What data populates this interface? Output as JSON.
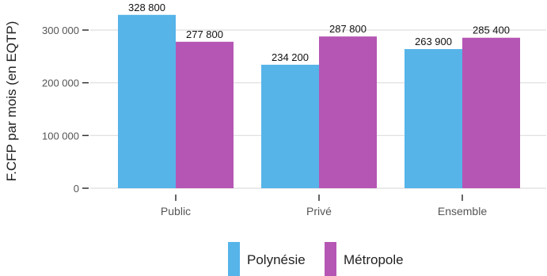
{
  "chart_data": {
    "type": "bar",
    "title": "",
    "xlabel": "",
    "ylabel": "F.CFP par mois (en EQTP)",
    "categories": [
      "Public",
      "Privé",
      "Ensemble"
    ],
    "series": [
      {
        "name": "Polynésie",
        "color": "#56b4e9",
        "values": [
          328800,
          234200,
          263900
        ],
        "labels": [
          "328 800",
          "234 200",
          "263 900"
        ]
      },
      {
        "name": "Métropole",
        "color": "#b556b4",
        "values": [
          277800,
          287800,
          285400
        ],
        "labels": [
          "277 800",
          "287 800",
          "285 400"
        ]
      }
    ],
    "ylim": [
      0,
      345000
    ],
    "yticks": [
      0,
      100000,
      200000,
      300000
    ],
    "ytick_labels": [
      "0",
      "100 000",
      "200 000",
      "300 000"
    ],
    "grid": "horizontal",
    "legend_position": "bottom"
  }
}
